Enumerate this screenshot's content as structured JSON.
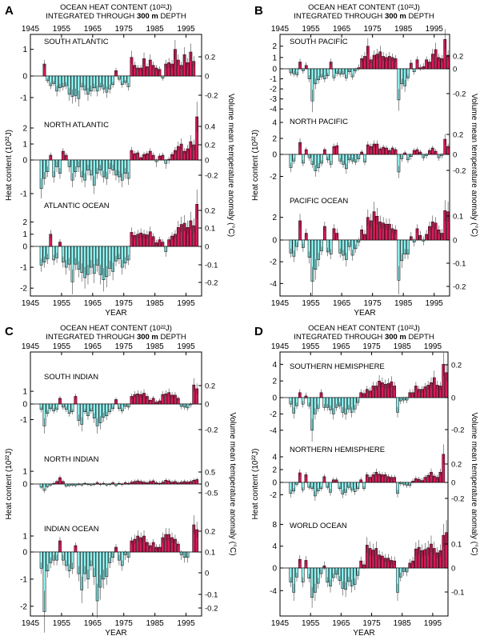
{
  "figure": {
    "colors": {
      "positive": "#d81b5a",
      "negative": "#8ef0ee",
      "outline": "#000000"
    },
    "xaxis_ticks": [
      "1945",
      "1955",
      "1965",
      "1975",
      "1985",
      "1995"
    ],
    "xlabel": "YEAR",
    "ylabel_left": "Heat content (10²²J)",
    "ylabel_right": "Volume mean temperature anomaly (°C)"
  },
  "chart_data": [
    {
      "type": "bar",
      "panel_label": "A",
      "title_line1": "OCEAN HEAT CONTENT (10²²J)",
      "title_line2_pre": "INTEGRATED THROUGH ",
      "title_line2_bold": "300 m",
      "title_line2_post": " DEPTH",
      "xlim": [
        1945,
        2000
      ],
      "subplots": [
        {
          "name": "SOUTH ATLANTIC",
          "ylim": [
            -1.3,
            1.5
          ],
          "yticks": [
            "1",
            "0",
            "-1"
          ],
          "rticks": [
            "0.2",
            "0",
            "-0.2"
          ],
          "values": [
            0,
            0,
            0,
            0,
            0.45,
            -0.22,
            -0.45,
            -0.35,
            -0.7,
            -0.55,
            -0.5,
            -0.45,
            -0.85,
            -0.95,
            -0.9,
            -1.05,
            -0.5,
            -0.65,
            -0.85,
            -0.7,
            -0.55,
            -0.7,
            -0.5,
            -0.6,
            -0.75,
            -0.6,
            -0.4,
            0.2,
            -0.15,
            -0.4,
            -0.3,
            -0.5,
            0.7,
            0.4,
            0.3,
            0.3,
            0.65,
            0.35,
            0.6,
            0.4,
            0.3,
            0.25,
            -0.1,
            0.45,
            0.5,
            0.45,
            1.0,
            0.6,
            0.4,
            0.8,
            0.5,
            0.9,
            0.55,
            0,
            0,
            0
          ]
        },
        {
          "name": "NORTH ATLANTIC",
          "ylim": [
            -1.0,
            3.0
          ],
          "yticks": [
            "2",
            "1",
            "0",
            "-1"
          ],
          "rticks": [
            "0.4",
            "0.2",
            "0",
            "-0.2"
          ],
          "values": [
            0,
            0,
            0,
            -0.85,
            -0.55,
            -0.35,
            0.3,
            -0.5,
            -0.2,
            -0.4,
            0.55,
            0.3,
            -0.2,
            -0.6,
            -0.35,
            -0.2,
            -0.5,
            -0.6,
            -0.3,
            -0.45,
            -0.75,
            -0.4,
            -0.3,
            -0.5,
            -0.55,
            -0.25,
            -0.3,
            -0.45,
            -0.5,
            -0.6,
            -0.4,
            -0.55,
            0.6,
            0.4,
            0.45,
            0.15,
            0.35,
            0.4,
            0.55,
            0.3,
            -0.05,
            0.25,
            0.3,
            -0.1,
            0.05,
            0.35,
            0.6,
            0.85,
            1.0,
            0.55,
            0.7,
            1.15,
            0.95,
            2.7,
            0,
            0
          ]
        },
        {
          "name": "ATLANTIC OCEAN",
          "ylim": [
            -2.3,
            3.8
          ],
          "yticks": [
            "2",
            "1",
            "0",
            "-1",
            "-2"
          ],
          "rticks": [
            "0.2",
            "0.1",
            "0",
            "-0.1",
            "-0.2"
          ],
          "values": [
            0,
            0,
            0,
            -0.9,
            -0.75,
            -0.6,
            1.0,
            -0.65,
            -0.55,
            0.35,
            -0.75,
            -1.0,
            -0.85,
            -1.7,
            -0.85,
            -1.1,
            -1.25,
            -1.5,
            -1.35,
            -1.0,
            -1.3,
            -0.9,
            -1.35,
            -1.6,
            -1.45,
            -1.05,
            -1.2,
            -0.7,
            -0.6,
            -1.0,
            -0.8,
            -0.65,
            1.15,
            0.9,
            1.0,
            1.1,
            1.0,
            0.95,
            1.2,
            0.8,
            0.3,
            0.55,
            0.35,
            -0.25,
            0.55,
            0.85,
            1.0,
            1.55,
            1.8,
            1.9,
            1.55,
            2.1,
            1.7,
            3.45,
            0,
            0
          ]
        }
      ]
    },
    {
      "type": "bar",
      "panel_label": "B",
      "title_line1": "OCEAN HEAT CONTENT (10²²J)",
      "title_line2_pre": "INTEGRATED THROUGH ",
      "title_line2_bold": "300 m",
      "title_line2_post": " DEPTH",
      "xlim": [
        1945,
        2000
      ],
      "subplots": [
        {
          "name": "SOUTH PACIFIC",
          "ylim": [
            -4.3,
            2.9
          ],
          "yticks": [
            "2",
            "1",
            "0",
            "-1",
            "-2",
            "-3",
            "-4"
          ],
          "rticks": [
            "0.2",
            "0",
            "-0.2"
          ],
          "values": [
            0,
            0,
            0,
            -0.4,
            -0.5,
            -0.6,
            0.6,
            -0.2,
            0.3,
            -1.0,
            -3.2,
            -1.5,
            -1.1,
            -0.8,
            -1.0,
            -0.7,
            0.6,
            -0.9,
            -0.45,
            -0.55,
            -0.5,
            -0.9,
            -0.3,
            -0.8,
            -0.2,
            0.1,
            0.9,
            1.1,
            2.0,
            0.8,
            1.2,
            1.3,
            1.5,
            1.1,
            1.0,
            1.1,
            1.0,
            0.9,
            -3.1,
            -1.5,
            -1.7,
            -0.9,
            0.5,
            -0.3,
            0.8,
            0.1,
            0.2,
            0.8,
            0.6,
            1.3,
            1.7,
            1.0,
            0.9,
            2.6,
            1.2,
            0
          ]
        },
        {
          "name": "NORTH PACIFIC",
          "ylim": [
            -2.4,
            4.5
          ],
          "yticks": [
            "4",
            "2",
            "0",
            "-2"
          ],
          "rticks": [
            "0.2",
            "0",
            "-0.2"
          ],
          "values": [
            0,
            0,
            0,
            -1.2,
            -0.6,
            0,
            1.5,
            -0.8,
            0.6,
            -0.3,
            -0.9,
            -1.5,
            -1.2,
            -0.8,
            0.6,
            -0.5,
            -0.9,
            1.0,
            1.1,
            -0.6,
            -0.9,
            -1.3,
            -0.5,
            -0.6,
            -0.7,
            -0.4,
            0.3,
            -0.7,
            1.2,
            1.0,
            1.3,
            1.3,
            0.7,
            0.9,
            0.8,
            0.5,
            0.8,
            0.6,
            -1.6,
            -0.4,
            0.2,
            -0.5,
            -0.2,
            0.5,
            0.6,
            0.3,
            -0.3,
            -0.1,
            0.5,
            0.8,
            0.4,
            -0.3,
            -0.1,
            1.9,
            1.0,
            0
          ]
        },
        {
          "name": "PACIFIC OCEAN",
          "ylim": [
            -5.0,
            4.8
          ],
          "yticks": [
            "2",
            "0",
            "-2",
            "-4"
          ],
          "rticks": [
            "0.1",
            "0",
            "-0.1",
            "-0.2"
          ],
          "values": [
            0,
            0,
            0,
            -1.2,
            -1.5,
            -0.6,
            1.7,
            -0.7,
            0.6,
            -1.6,
            -3.8,
            -2.7,
            -1.8,
            -1.0,
            1.2,
            -1.1,
            -1.3,
            1.0,
            0.6,
            -1.2,
            -1.4,
            -1.8,
            -0.6,
            -1.4,
            -0.8,
            -0.2,
            0.9,
            0.5,
            2.0,
            1.7,
            2.5,
            2.1,
            1.6,
            1.5,
            1.4,
            1.4,
            1.0,
            0.9,
            -3.7,
            -1.9,
            -1.3,
            -1.3,
            0.3,
            -0.2,
            1.0,
            0.4,
            -0.1,
            0.5,
            1.2,
            1.6,
            1.5,
            0.9,
            0.6,
            2.6,
            2.5,
            0
          ]
        }
      ]
    },
    {
      "type": "bar",
      "panel_label": "C",
      "title_line1": "OCEAN HEAT CONTENT (10²²J)",
      "title_line2_pre": "INTEGRATED THROUGH ",
      "title_line2_bold": "300 m",
      "title_line2_post": " DEPTH",
      "xlim": [
        1945,
        2000
      ],
      "subplots": [
        {
          "name": "SOUTH INDIAN",
          "ylim": [
            -2.2,
            2.2
          ],
          "yticks": [
            "1",
            "0",
            "-1"
          ],
          "rticks": [
            "0.2",
            "0",
            "-0.2"
          ],
          "values": [
            0,
            0,
            0,
            -0.35,
            -1.4,
            -0.6,
            -0.3,
            -0.45,
            -0.35,
            0.45,
            -0.2,
            -0.35,
            -0.6,
            -0.5,
            0.6,
            -1.05,
            -1.3,
            -0.5,
            -0.75,
            -0.45,
            -0.9,
            -1.4,
            -1.2,
            -0.85,
            -0.75,
            -0.5,
            -0.3,
            0.35,
            -0.3,
            -0.45,
            -0.15,
            -0.2,
            0.6,
            0.75,
            0.8,
            0.75,
            0.85,
            0.6,
            0.3,
            0.45,
            0.15,
            0.25,
            0.75,
            0.8,
            0.9,
            0.7,
            0.7,
            0.45,
            -0.15,
            -0.2,
            -0.25,
            -0.05,
            1.5,
            1.2,
            0,
            0
          ]
        },
        {
          "name": "NORTH INDIAN",
          "ylim": [
            -1.5,
            2.2
          ],
          "yticks": [
            "1",
            "0"
          ],
          "rticks": [
            "0.5",
            "0",
            "-0.5"
          ],
          "values": [
            0,
            0,
            0,
            -0.3,
            -0.6,
            -0.25,
            -0.1,
            0.05,
            0.2,
            0.5,
            0.2,
            -0.2,
            -0.15,
            -0.1,
            -0.15,
            -0.05,
            -0.1,
            0.05,
            -0.05,
            -0.1,
            -0.05,
            0.1,
            -0.05,
            0.05,
            -0.1,
            -0.05,
            0.1,
            -0.15,
            0.05,
            -0.05,
            0.1,
            0.05,
            0.15,
            0.2,
            0.25,
            0.2,
            0.15,
            0.1,
            0.2,
            0.25,
            0.1,
            0.05,
            0.15,
            0.3,
            0.25,
            0.15,
            0.2,
            0.1,
            0.15,
            0.2,
            0.15,
            0.2,
            0.3,
            0.35,
            0,
            0
          ]
        },
        {
          "name": "INDIAN OCEAN",
          "ylim": [
            -2.3,
            2.5
          ],
          "yticks": [
            "1",
            "0",
            "-1",
            "-2"
          ],
          "rticks": [
            "0.2",
            "0.1",
            "0",
            "-0.1",
            "-0.2"
          ],
          "values": [
            0,
            0,
            0,
            -0.6,
            -2.2,
            -0.7,
            -0.4,
            -0.3,
            -0.3,
            0.7,
            -0.3,
            -0.5,
            -0.7,
            -0.6,
            0.4,
            -0.8,
            -1.4,
            -0.8,
            -1.0,
            -0.5,
            -0.9,
            -1.8,
            -1.3,
            -1.0,
            -0.9,
            -0.4,
            -0.2,
            0.3,
            -0.3,
            -0.5,
            -0.1,
            -0.2,
            0.7,
            0.8,
            1.0,
            0.9,
            1.0,
            0.6,
            0.4,
            0.6,
            0.3,
            0.3,
            0.9,
            1.1,
            1.1,
            0.9,
            0.8,
            0.5,
            -0.1,
            -0.2,
            -0.2,
            0,
            1.7,
            1.4,
            0,
            0
          ]
        }
      ]
    },
    {
      "type": "bar",
      "panel_label": "D",
      "title_line1": "OCEAN HEAT CONTENT (10²²J)",
      "title_line2_pre": "INTEGRATED THROUGH ",
      "title_line2_bold": "300 m",
      "title_line2_post": " DEPTH",
      "xlim": [
        1945,
        2000
      ],
      "subplots": [
        {
          "name": "SOUTHERN HEMISPHERE",
          "ylim": [
            -5.0,
            5.0
          ],
          "yticks": [
            "4",
            "2",
            "0",
            "-2",
            "-4"
          ],
          "rticks": [
            "0.2",
            "0",
            "-0.2"
          ],
          "values": [
            0,
            0,
            0,
            -0.8,
            -1.9,
            -1.0,
            0.6,
            -0.8,
            0.2,
            -1.0,
            -4.0,
            -2.0,
            -1.3,
            0.6,
            -1.2,
            -1.2,
            -1.5,
            -2.0,
            -1.2,
            -1.0,
            -1.8,
            -2.0,
            -1.4,
            -1.8,
            -1.4,
            -0.6,
            0.6,
            0.5,
            1.0,
            0.8,
            1.4,
            1.4,
            2.0,
            1.8,
            1.6,
            1.7,
            1.9,
            1.4,
            -1.8,
            -0.4,
            -0.3,
            -0.3,
            0.6,
            0.6,
            1.4,
            1.0,
            1.0,
            1.3,
            1.5,
            1.8,
            2.4,
            1.5,
            1.4,
            4.0,
            3.0,
            0
          ]
        },
        {
          "name": "NORTHERN HEMISPHERE",
          "ylim": [
            -3.5,
            6.0
          ],
          "yticks": [
            "4",
            "2",
            "0",
            "-2"
          ],
          "rticks": [
            "0.2",
            "0",
            "-0.2"
          ],
          "values": [
            0,
            0,
            0,
            -1.8,
            -1.4,
            -0.3,
            1.5,
            -1.2,
            1.2,
            -0.8,
            -1.0,
            -2.2,
            -1.4,
            -1.0,
            0.9,
            -0.8,
            -1.6,
            0.4,
            0.4,
            -1.0,
            -1.9,
            -1.6,
            -0.8,
            -1.2,
            -1.5,
            -1.0,
            0.4,
            -1.0,
            1.2,
            0.8,
            1.2,
            1.6,
            1.3,
            1.2,
            1.2,
            0.9,
            0.8,
            0.8,
            -1.8,
            -0.2,
            -0.3,
            -0.5,
            -0.5,
            0.2,
            0.6,
            0.5,
            0.3,
            0.8,
            1.1,
            1.6,
            1.0,
            0.8,
            1.6,
            4.4,
            0,
            0
          ]
        },
        {
          "name": "WORLD OCEAN",
          "ylim": [
            -8.2,
            11.0
          ],
          "yticks": [
            "8",
            "4",
            "0",
            "-4"
          ],
          "rticks": [
            "0.1",
            "0",
            "-0.1"
          ],
          "values": [
            0,
            0,
            0,
            -2.5,
            -4.3,
            -1.6,
            1.6,
            -2.5,
            1.4,
            -1.8,
            -5.2,
            -4.3,
            -2.7,
            -1.0,
            0.4,
            -2.5,
            -3.2,
            -1.7,
            -1.1,
            -2.2,
            -3.6,
            -3.8,
            -2.4,
            -3.2,
            -2.9,
            -1.3,
            1.3,
            0.6,
            4.2,
            3.6,
            3.3,
            3.6,
            2.4,
            2.2,
            1.8,
            1.8,
            1.4,
            1.3,
            -4.3,
            -1.6,
            -0.6,
            -0.7,
            0.9,
            1.3,
            3.5,
            3.8,
            3.2,
            3.4,
            3.7,
            4.4,
            3.6,
            2.8,
            3.2,
            6.0,
            6.5,
            0
          ]
        }
      ]
    }
  ]
}
